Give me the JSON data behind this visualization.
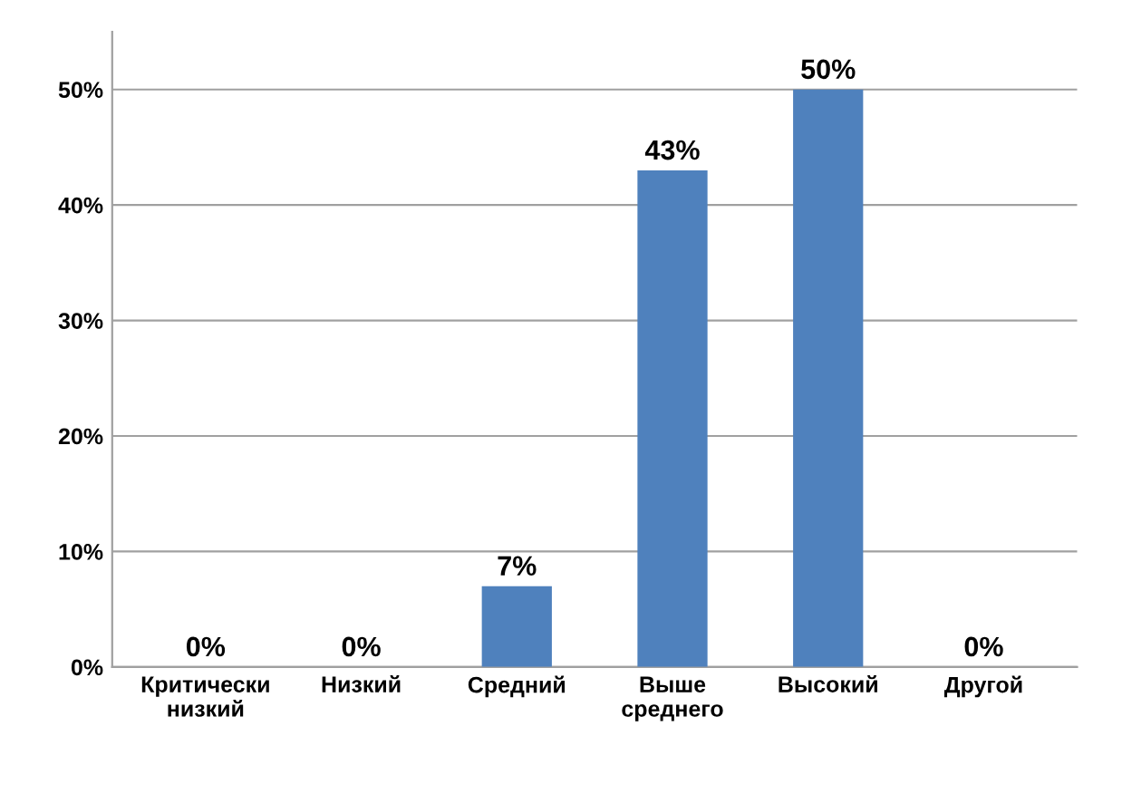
{
  "chart_data": {
    "type": "bar",
    "categories": [
      "Критически\nнизкий",
      "Низкий",
      "Средний",
      "Выше\nсреднего",
      "Высокий",
      "Другой"
    ],
    "values": [
      0,
      0,
      7,
      43,
      50,
      0
    ],
    "value_labels": [
      "0%",
      "0%",
      "7%",
      "43%",
      "50%",
      "0%"
    ],
    "color": "#4f81bd",
    "ylim": [
      0,
      55
    ],
    "yticks": [
      {
        "value": 0,
        "label": "0%"
      },
      {
        "value": 10,
        "label": "10%"
      },
      {
        "value": 20,
        "label": "20%"
      },
      {
        "value": 30,
        "label": "30%"
      },
      {
        "value": 40,
        "label": "40%"
      },
      {
        "value": 50,
        "label": "50%"
      }
    ],
    "grid": "y"
  }
}
